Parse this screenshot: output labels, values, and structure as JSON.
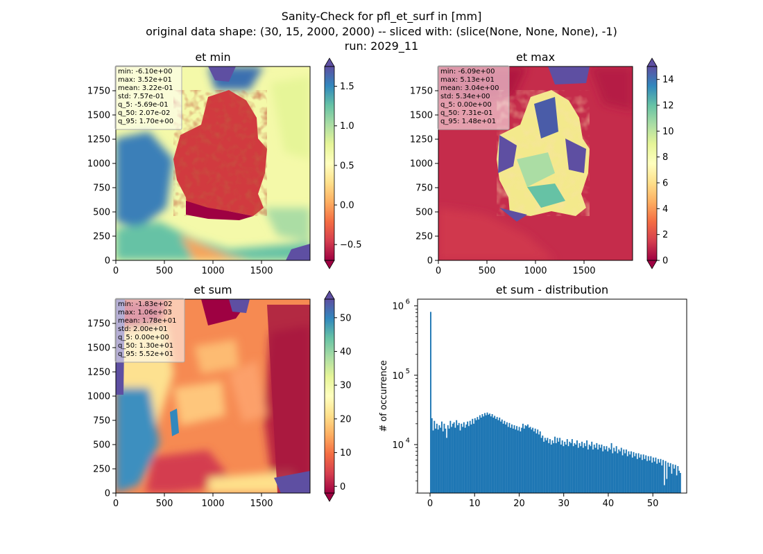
{
  "figure": {
    "title_lines": [
      "Sanity-Check for pfl_et_surf in [mm]",
      "original data shape: (30, 15, 2000, 2000) -- sliced with: (slice(None, None, None), -1)",
      "run: 2029_11"
    ]
  },
  "colormap": {
    "name": "Spectral",
    "stops": [
      "#9e0142",
      "#d53e4f",
      "#f46d43",
      "#fdae61",
      "#fee08b",
      "#ffffbf",
      "#e6f598",
      "#abdda4",
      "#66c2a5",
      "#3288bd",
      "#5e4fa2"
    ]
  },
  "chart_data": [
    {
      "type": "heatmap",
      "id": "et_min",
      "title": "et min",
      "xlim": [
        0,
        2000
      ],
      "ylim": [
        0,
        2000
      ],
      "x_ticks": [
        0,
        500,
        1000,
        1500
      ],
      "y_ticks": [
        0,
        250,
        500,
        750,
        1000,
        1250,
        1500,
        1750
      ],
      "colorbar": {
        "vmin": -0.7,
        "vmax": 1.75,
        "ticks": [
          -0.5,
          0.0,
          0.5,
          1.0,
          1.5
        ],
        "tick_labels": [
          "−0.5",
          "0.0",
          "0.5",
          "1.0",
          "1.5"
        ],
        "extend": "both"
      },
      "stats": [
        "min: -6.10e+00",
        "max: 3.52e+01",
        "mean: 3.22e-01",
        "std: 7.57e-01",
        "q_5: -5.69e-01",
        "q_50: 2.07e-02",
        "q_95: 1.70e+00"
      ]
    },
    {
      "type": "heatmap",
      "id": "et_max",
      "title": "et max",
      "xlim": [
        0,
        2000
      ],
      "ylim": [
        0,
        2000
      ],
      "x_ticks": [
        0,
        500,
        1000,
        1500
      ],
      "y_ticks": [
        0,
        250,
        500,
        750,
        1000,
        1250,
        1500,
        1750
      ],
      "colorbar": {
        "vmin": 0,
        "vmax": 15,
        "ticks": [
          0,
          2,
          4,
          6,
          8,
          10,
          12,
          14
        ],
        "tick_labels": [
          "0",
          "2",
          "4",
          "6",
          "8",
          "10",
          "12",
          "14"
        ],
        "extend": "both"
      },
      "stats": [
        "min: -6.09e+00",
        "max: 5.13e+01",
        "mean: 3.04e+00",
        "std: 5.34e+00",
        "q_5: 0.00e+00",
        "q_50: 7.31e-01",
        "q_95: 1.48e+01"
      ]
    },
    {
      "type": "heatmap",
      "id": "et_sum",
      "title": "et sum",
      "xlim": [
        0,
        2000
      ],
      "ylim": [
        0,
        2000
      ],
      "x_ticks": [
        0,
        500,
        1000,
        1500
      ],
      "y_ticks": [
        0,
        250,
        500,
        750,
        1000,
        1250,
        1500,
        1750
      ],
      "colorbar": {
        "vmin": -2,
        "vmax": 55.5,
        "ticks": [
          0,
          10,
          20,
          30,
          40,
          50
        ],
        "tick_labels": [
          "0",
          "10",
          "20",
          "30",
          "40",
          "50"
        ],
        "extend": "both"
      },
      "stats": [
        "min: -1.83e+02",
        "max: 1.06e+03",
        "mean: 1.78e+01",
        "std: 2.00e+01",
        "q_5: 0.00e+00",
        "q_50: 1.30e+01",
        "q_95: 5.52e+01"
      ]
    },
    {
      "type": "bar",
      "id": "et_sum_distribution",
      "title": "et sum - distribution",
      "ylabel": "# of occurrence",
      "xlabel": "",
      "log_y": true,
      "xlim": [
        -2.8,
        57.6
      ],
      "ylim": [
        2000,
        1250000
      ],
      "x_ticks": [
        0,
        10,
        20,
        30,
        40,
        50
      ],
      "y_ticks": [
        10000,
        100000,
        1000000
      ],
      "y_tick_labels": [
        {
          "base": "10",
          "exp": "4"
        },
        {
          "base": "10",
          "exp": "5"
        },
        {
          "base": "10",
          "exp": "6"
        }
      ],
      "color": "#1f77b4",
      "bin_start": 0,
      "bin_width": 0.276,
      "counts": [
        820000,
        24000,
        16000,
        22000,
        17000,
        20000,
        16500,
        19000,
        17500,
        21500,
        15500,
        20000,
        17000,
        12500,
        19000,
        17000,
        22000,
        18000,
        20000,
        21000,
        17500,
        22500,
        19000,
        20500,
        16000,
        20000,
        18000,
        21000,
        17500,
        19500,
        21500,
        18500,
        22000,
        19500,
        23500,
        20000,
        24000,
        22500,
        25000,
        23000,
        26500,
        24500,
        27500,
        25500,
        28500,
        26500,
        29000,
        27000,
        28000,
        25500,
        27500,
        24500,
        26000,
        23500,
        25000,
        22500,
        24500,
        21500,
        23000,
        20000,
        22000,
        19500,
        21000,
        18000,
        20500,
        17500,
        19500,
        17000,
        19000,
        16500,
        18500,
        16000,
        18000,
        15500,
        17500,
        20000,
        17000,
        19000,
        18500,
        19500,
        17500,
        18000,
        16500,
        17500,
        15500,
        17000,
        14500,
        16500,
        14000,
        15500,
        12500,
        13500,
        11000,
        12500,
        11500,
        12500,
        10500,
        12000,
        10000,
        11500,
        10500,
        13000,
        10500,
        12500,
        11000,
        12500,
        10000,
        11500,
        9500,
        11000,
        10000,
        12000,
        9500,
        11000,
        10500,
        12000,
        9500,
        10500,
        10000,
        11500,
        9000,
        10500,
        9500,
        11000,
        9000,
        10500,
        9500,
        11500,
        8500,
        10000,
        9500,
        11000,
        8500,
        10000,
        9000,
        10500,
        8500,
        10000,
        9000,
        10000,
        8000,
        9500,
        8500,
        9500,
        8000,
        9000,
        8500,
        10500,
        7500,
        9000,
        8000,
        9500,
        7500,
        8500,
        8000,
        9000,
        7000,
        8500,
        7500,
        8500,
        6800,
        8000,
        7200,
        8000,
        6500,
        7800,
        6800,
        7500,
        6200,
        7500,
        6500,
        7200,
        6000,
        7200,
        6200,
        7000,
        5800,
        6800,
        5900,
        6800,
        5500,
        6500,
        5700,
        6500,
        5300,
        6200,
        5500,
        6200,
        5000,
        6000,
        2600,
        5800,
        3200,
        5500,
        4800,
        5400,
        3800,
        5200,
        4500,
        5100,
        3600,
        4900,
        4200,
        3900
      ]
    }
  ]
}
